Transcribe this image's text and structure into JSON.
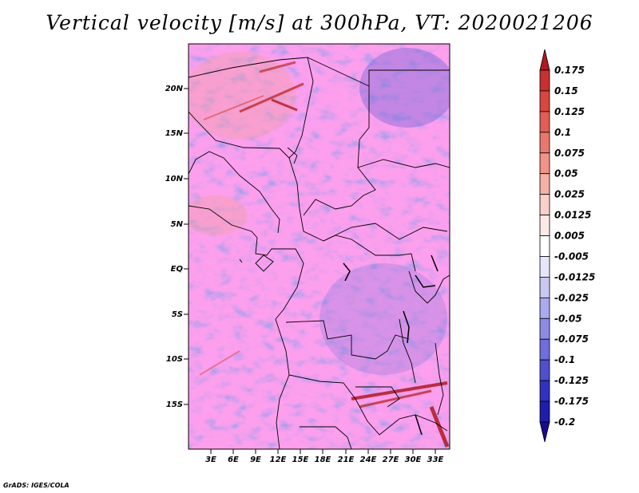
{
  "title": "Vertical velocity [m/s] at 300hPa, VT: 2020021206",
  "footer": "GrADS: IGES/COLA",
  "lat_ticks": [
    "20N",
    "15N",
    "10N",
    "5N",
    "EQ",
    "5S",
    "10S",
    "15S"
  ],
  "lon_ticks": [
    "3E",
    "6E",
    "9E",
    "12E",
    "15E",
    "18E",
    "21E",
    "24E",
    "27E",
    "30E",
    "33E"
  ],
  "colorbar": {
    "labels": [
      "0.175",
      "0.15",
      "0.125",
      "0.1",
      "0.075",
      "0.05",
      "0.025",
      "0.0125",
      "0.005",
      "-0.005",
      "-0.0125",
      "-0.025",
      "-0.05",
      "-0.075",
      "-0.1",
      "-0.125",
      "-0.175",
      "-0.2"
    ],
    "colors": [
      "#b01a20",
      "#c8302e",
      "#d9463f",
      "#e25e55",
      "#ea776c",
      "#f19387",
      "#f6b0a6",
      "#fad0c9",
      "#fdeae6",
      "#ffffff",
      "#e6e6fa",
      "#c8c8f5",
      "#aaaaee",
      "#8c8ce6",
      "#6e6edc",
      "#5050cd",
      "#3232be",
      "#1e1eaa",
      "#1a0a8c"
    ]
  }
}
